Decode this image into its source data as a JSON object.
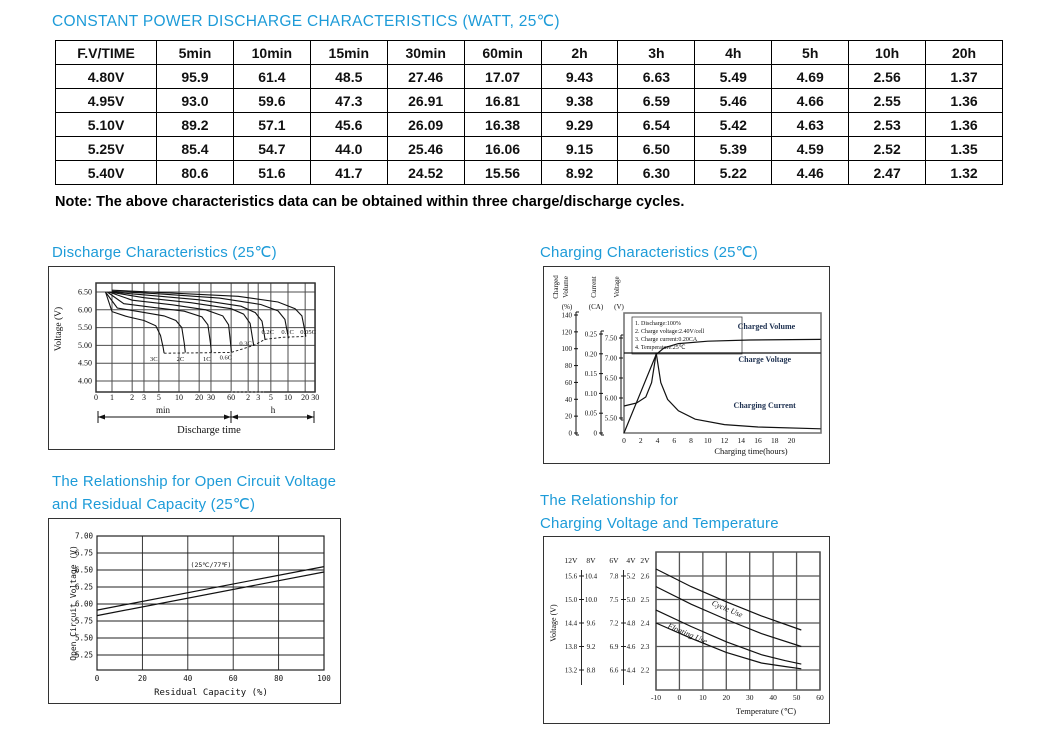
{
  "page": {
    "title": "CONSTANT POWER DISCHARGE CHARACTERISTICS (WATT, 25℃)",
    "note": "Note: The above characteristics data can be obtained within three charge/discharge cycles.",
    "accent_color": "#1d9bd8"
  },
  "table": {
    "header": [
      "F.V/TIME",
      "5min",
      "10min",
      "15min",
      "30min",
      "60min",
      "2h",
      "3h",
      "4h",
      "5h",
      "10h",
      "20h"
    ],
    "rows": [
      [
        "4.80V",
        "95.9",
        "61.4",
        "48.5",
        "27.46",
        "17.07",
        "9.43",
        "6.63",
        "5.49",
        "4.69",
        "2.56",
        "1.37"
      ],
      [
        "4.95V",
        "93.0",
        "59.6",
        "47.3",
        "26.91",
        "16.81",
        "9.38",
        "6.59",
        "5.46",
        "4.66",
        "2.55",
        "1.36"
      ],
      [
        "5.10V",
        "89.2",
        "57.1",
        "45.6",
        "26.09",
        "16.38",
        "9.29",
        "6.54",
        "5.42",
        "4.63",
        "2.53",
        "1.36"
      ],
      [
        "5.25V",
        "85.4",
        "54.7",
        "44.0",
        "25.46",
        "16.06",
        "9.15",
        "6.50",
        "5.39",
        "4.59",
        "2.52",
        "1.35"
      ],
      [
        "5.40V",
        "80.6",
        "51.6",
        "41.7",
        "24.52",
        "15.56",
        "8.92",
        "6.30",
        "5.22",
        "4.46",
        "2.47",
        "1.32"
      ]
    ]
  },
  "chart_data": [
    {
      "id": "discharge",
      "type": "line",
      "title": "Discharge Characteristics (25℃)",
      "ylabel": "Voltage (V)",
      "xlabel": "Discharge time",
      "unit_segments": [
        "min",
        "h"
      ],
      "x_origin_label": "0",
      "y_ticks": [
        "6.50",
        "6.00",
        "5.50",
        "5.00",
        "4.50",
        "4.00"
      ],
      "x_ticks_min": [
        1,
        2,
        3,
        5,
        10,
        20,
        30,
        60
      ],
      "x_ticks_hours": [
        2,
        3,
        5,
        10,
        20,
        30
      ],
      "ylim": [
        3.6,
        6.75
      ],
      "series": [
        {
          "name": "3C",
          "points": [
            [
              0.8,
              6.5
            ],
            [
              1.0,
              5.95
            ],
            [
              1.6,
              5.82
            ],
            [
              3,
              5.7
            ],
            [
              4.5,
              5.55
            ],
            [
              5.3,
              5.28
            ],
            [
              5.8,
              4.95
            ],
            [
              6,
              4.78
            ]
          ]
        },
        {
          "name": "2C",
          "points": [
            [
              0.8,
              6.5
            ],
            [
              1.2,
              6.05
            ],
            [
              2.5,
              5.95
            ],
            [
              6,
              5.83
            ],
            [
              9,
              5.7
            ],
            [
              11,
              5.5
            ],
            [
              12,
              5.05
            ],
            [
              12.4,
              4.8
            ]
          ]
        },
        {
          "name": "1C",
          "points": [
            [
              0.85,
              6.5
            ],
            [
              1.5,
              6.17
            ],
            [
              4,
              6.07
            ],
            [
              12,
              5.96
            ],
            [
              22,
              5.8
            ],
            [
              27,
              5.58
            ],
            [
              29.5,
              5.05
            ],
            [
              30.5,
              4.8
            ]
          ]
        },
        {
          "name": "0.6C",
          "points": [
            [
              0.9,
              6.5
            ],
            [
              2,
              6.27
            ],
            [
              8,
              6.14
            ],
            [
              25,
              6.0
            ],
            [
              45,
              5.83
            ],
            [
              55,
              5.58
            ],
            [
              59,
              5.05
            ],
            [
              61,
              4.82
            ]
          ]
        },
        {
          "name": "0.3C",
          "points": [
            [
              0.9,
              6.5
            ],
            [
              3,
              6.34
            ],
            [
              15,
              6.2
            ],
            [
              60,
              6.03
            ],
            [
              100,
              5.88
            ],
            [
              130,
              5.62
            ],
            [
              145,
              5.15
            ],
            [
              150,
              5.0
            ]
          ]
        },
        {
          "name": "0.2C",
          "points": [
            [
              0.95,
              6.5
            ],
            [
              4,
              6.4
            ],
            [
              20,
              6.28
            ],
            [
              90,
              6.1
            ],
            [
              160,
              5.92
            ],
            [
              210,
              5.68
            ],
            [
              230,
              5.3
            ],
            [
              238,
              5.15
            ]
          ]
        },
        {
          "name": "0.1C",
          "points": [
            [
              1,
              6.52
            ],
            [
              5,
              6.45
            ],
            [
              40,
              6.33
            ],
            [
              200,
              6.15
            ],
            [
              400,
              5.97
            ],
            [
              530,
              5.73
            ],
            [
              590,
              5.33
            ],
            [
              610,
              5.2
            ]
          ]
        },
        {
          "name": "0.05C",
          "points": [
            [
              1,
              6.55
            ],
            [
              6,
              6.48
            ],
            [
              80,
              6.38
            ],
            [
              400,
              6.22
            ],
            [
              800,
              6.03
            ],
            [
              1050,
              5.83
            ],
            [
              1180,
              5.43
            ],
            [
              1230,
              5.25
            ]
          ]
        }
      ],
      "curve_labels": [
        {
          "name": "3C",
          "at": [
            4.2,
            4.62
          ]
        },
        {
          "name": "2C",
          "at": [
            10.5,
            4.62
          ]
        },
        {
          "name": "1C",
          "at": [
            26,
            4.62
          ]
        },
        {
          "name": "0.6C",
          "at": [
            50,
            4.66
          ]
        },
        {
          "name": "0.3C",
          "at": [
            108,
            5.06
          ]
        },
        {
          "name": "0.2C",
          "at": [
            265,
            5.38
          ]
        },
        {
          "name": "0.1C",
          "at": [
            590,
            5.38
          ]
        },
        {
          "name": "0.05C",
          "at": [
            1350,
            5.38
          ]
        }
      ],
      "cutoff_line": {
        "style": "dashed",
        "points": [
          [
            6,
            4.78
          ],
          [
            60,
            4.8
          ],
          [
            150,
            5.0
          ],
          [
            238,
            5.17
          ],
          [
            500,
            5.23
          ],
          [
            1230,
            5.25
          ]
        ]
      }
    },
    {
      "id": "charging",
      "type": "line",
      "title": "Charging Characteristics (25℃)",
      "xlabel": "Charging time(hours)",
      "x_ticks": [
        0,
        2,
        4,
        6,
        8,
        10,
        12,
        14,
        16,
        18,
        20
      ],
      "axes": [
        {
          "name": "Charged Volume",
          "title_lines": [
            "Charged",
            "Volume"
          ],
          "unit": "(%)",
          "ticks": [
            "140",
            "120",
            "100",
            "80",
            "60",
            "40",
            "20",
            "0"
          ]
        },
        {
          "name": "Current",
          "title_lines": [
            "Current"
          ],
          "unit": "(CA)",
          "ticks": [
            "0.25",
            "0.20",
            "0.15",
            "0.10",
            "0.05",
            "0"
          ]
        },
        {
          "name": "Voltage",
          "title_lines": [
            "Voltage"
          ],
          "unit": "(V)",
          "ticks": [
            "7.50",
            "7.00",
            "6.50",
            "6.00",
            "5.50"
          ]
        }
      ],
      "conditions": [
        "1. Discharge:100%",
        "2. Charge voltage:2.40V/cell",
        "3. Charge current:0.20CA",
        "4. Temperature:25℃"
      ],
      "series": [
        {
          "name": "constant-level",
          "points_hf": [
            [
              0,
              0.667
            ],
            [
              23.5,
              0.667
            ]
          ]
        },
        {
          "name": "charge-voltage",
          "points_hf": [
            [
              0,
              0.225
            ],
            [
              1.5,
              0.25
            ],
            [
              2.6,
              0.3
            ],
            [
              3.3,
              0.42
            ],
            [
              3.7,
              0.6
            ],
            [
              3.85,
              0.667
            ]
          ]
        },
        {
          "name": "charging-current",
          "points_hf": [
            [
              3.85,
              0.667
            ],
            [
              4.4,
              0.42
            ],
            [
              5.2,
              0.28
            ],
            [
              6.5,
              0.185
            ],
            [
              8.5,
              0.115
            ],
            [
              12,
              0.07
            ],
            [
              16,
              0.05
            ],
            [
              23.5,
              0.035
            ]
          ]
        },
        {
          "name": "charged-volume",
          "points_hf": [
            [
              0,
              0
            ],
            [
              3.85,
              0.655
            ],
            [
              4.8,
              0.71
            ],
            [
              6.5,
              0.745
            ],
            [
              10,
              0.765
            ],
            [
              15,
              0.775
            ],
            [
              23.5,
              0.78
            ]
          ]
        }
      ],
      "curve_labels": [
        {
          "text": "Charged Volume",
          "x": 17.0,
          "f": 0.867
        },
        {
          "text": "Charge Voltage",
          "x": 16.8,
          "f": 0.59
        },
        {
          "text": "Charging Current",
          "x": 16.8,
          "f": 0.208
        }
      ]
    },
    {
      "id": "open-circuit-voltage",
      "type": "line",
      "title_lines": [
        "The Relationship for Open Circuit Voltage",
        "and Residual Capacity (25℃)"
      ],
      "ylabel": "Open Circuit Voltage (V)",
      "xlabel": "Residual Capacity (%)",
      "annotation": "(25℃/77℉)",
      "y_ticks": [
        "7.00",
        "6.75",
        "6.50",
        "6.25",
        "6.00",
        "5.75",
        "5.50",
        "5.25"
      ],
      "x_ticks": [
        0,
        20,
        40,
        60,
        80,
        100
      ],
      "series": [
        {
          "name": "upper",
          "points": [
            [
              0,
              5.91
            ],
            [
              100,
              6.55
            ]
          ]
        },
        {
          "name": "lower",
          "points": [
            [
              0,
              5.83
            ],
            [
              100,
              6.47
            ]
          ]
        }
      ]
    },
    {
      "id": "charging-voltage-temperature",
      "type": "line",
      "title_lines": [
        "The Relationship for",
        "Charging Voltage and Temperature"
      ],
      "ylabel": "Voltage (V)",
      "xlabel": "Temperature (℃)",
      "scale_headers": [
        "12V",
        "8V",
        "6V",
        "4V",
        "2V"
      ],
      "scales": [
        [
          "15.6",
          "15.0",
          "14.4",
          "13.8",
          "13.2"
        ],
        [
          "10.4",
          "10.0",
          "9.6",
          "9.2",
          "8.8"
        ],
        [
          "7.8",
          "7.5",
          "7.2",
          "6.9",
          "6.6"
        ],
        [
          "5.2",
          "5.0",
          "4.8",
          "4.6",
          "4.4"
        ],
        [
          "2.6",
          "2.5",
          "2.4",
          "2.3",
          "2.2"
        ]
      ],
      "x_ticks": [
        -10,
        0,
        10,
        20,
        30,
        40,
        50,
        60
      ],
      "series": [
        {
          "name": "Cycle Use upper",
          "points": [
            [
              -10,
              2.63
            ],
            [
              5,
              2.555
            ],
            [
              20,
              2.49
            ],
            [
              35,
              2.43
            ],
            [
              52,
              2.37
            ]
          ]
        },
        {
          "name": "Cycle Use lower",
          "points": [
            [
              -10,
              2.555
            ],
            [
              5,
              2.48
            ],
            [
              20,
              2.415
            ],
            [
              35,
              2.355
            ],
            [
              52,
              2.3
            ]
          ]
        },
        {
          "name": "Floating Use upper",
          "points": [
            [
              -10,
              2.455
            ],
            [
              5,
              2.385
            ],
            [
              20,
              2.32
            ],
            [
              35,
              2.265
            ],
            [
              45,
              2.24
            ],
            [
              52,
              2.225
            ]
          ]
        },
        {
          "name": "Floating Use lower",
          "points": [
            [
              -10,
              2.4
            ],
            [
              5,
              2.335
            ],
            [
              20,
              2.275
            ],
            [
              35,
              2.23
            ],
            [
              45,
              2.215
            ],
            [
              52,
              2.205
            ]
          ]
        }
      ],
      "band_labels": [
        {
          "text": "Cycle Use",
          "t": 20,
          "v": 2.45,
          "angle": 23
        },
        {
          "text": "Floating Use",
          "t": 3,
          "v": 2.345,
          "angle": 23
        }
      ]
    }
  ]
}
